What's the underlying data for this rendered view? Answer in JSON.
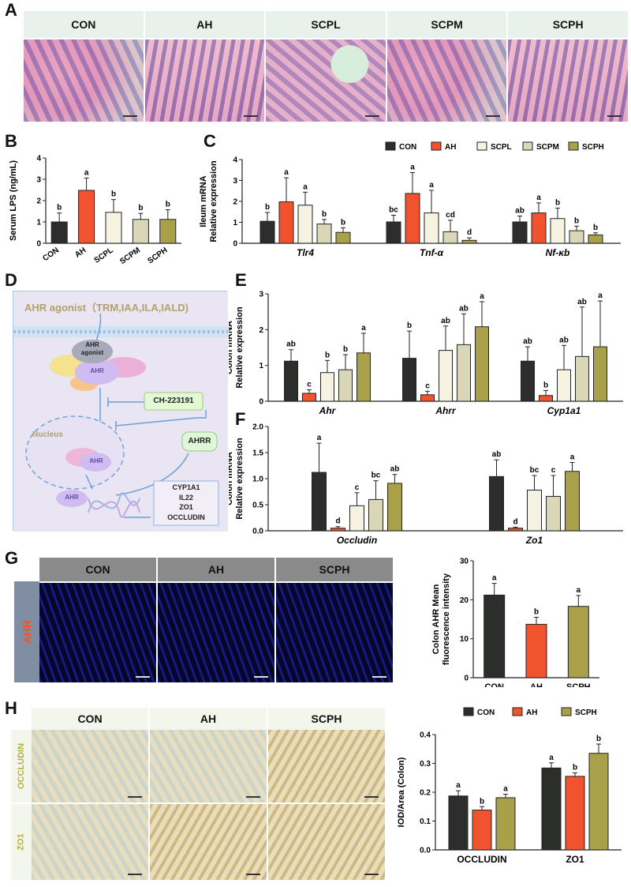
{
  "panels": {
    "A": {
      "label": "A",
      "headers": [
        "CON",
        "AH",
        "SCPL",
        "SCPM",
        "SCPH"
      ]
    },
    "B": {
      "label": "B",
      "chart_data": {
        "type": "bar",
        "categories": [
          "CON",
          "AH",
          "SCPL",
          "SCPM",
          "SCPH"
        ],
        "values": [
          1.0,
          2.48,
          1.45,
          1.12,
          1.12
        ],
        "errors": [
          0.42,
          0.58,
          0.6,
          0.28,
          0.45
        ],
        "letters": [
          "b",
          "a",
          "b",
          "b",
          "b"
        ],
        "ylabel": "Serum LPS (ng/mL)",
        "ylim": [
          0,
          4
        ],
        "yticks": [
          "0",
          "1",
          "2",
          "3",
          "4"
        ],
        "colors": [
          "#2b2e2b",
          "#f0532d",
          "#f6f3e3",
          "#d9d7b8",
          "#a9a04a"
        ]
      }
    },
    "C": {
      "label": "C",
      "chart_data": {
        "type": "bar",
        "groups": [
          "Tlr4",
          "Tnf-α",
          "Nf-κb"
        ],
        "series": [
          {
            "name": "CON",
            "values": [
              1.05,
              1.02,
              1.02
            ],
            "errors": [
              0.42,
              0.32,
              0.28
            ],
            "letters": [
              "b",
              "bc",
              "ab"
            ],
            "color": "#2b2e2b"
          },
          {
            "name": "AH",
            "values": [
              1.98,
              2.38,
              1.45
            ],
            "errors": [
              1.15,
              1.0,
              0.48
            ],
            "letters": [
              "a",
              "a",
              "a"
            ],
            "color": "#f0532d"
          },
          {
            "name": "SCPL",
            "values": [
              1.82,
              1.45,
              1.18
            ],
            "errors": [
              0.62,
              1.08,
              0.5
            ],
            "letters": [
              "a",
              "a",
              "b"
            ],
            "color": "#f6f3e3"
          },
          {
            "name": "SCPM",
            "values": [
              0.92,
              0.55,
              0.6
            ],
            "errors": [
              0.22,
              0.55,
              0.22
            ],
            "letters": [
              "b",
              "cd",
              "b"
            ],
            "color": "#d9d7b8"
          },
          {
            "name": "SCPH",
            "values": [
              0.52,
              0.14,
              0.4
            ],
            "errors": [
              0.22,
              0.12,
              0.1
            ],
            "letters": [
              "b",
              "d",
              "b"
            ],
            "color": "#a9a04a"
          }
        ],
        "ylabel_line1": "Ileum mRNA",
        "ylabel_line2": "Relative expression",
        "ylim": [
          0,
          4
        ],
        "yticks": [
          "0",
          "1",
          "2",
          "3",
          "4"
        ]
      }
    },
    "D": {
      "label": "D",
      "agonist_title": "AHR agonist（TRM,IAA,ILA,IALD)",
      "agonist_node_line1": "AHR",
      "agonist_node_line2": "agonist",
      "ahr_cyto": "AHR",
      "inhibitor": "CH-223191",
      "nucleus_label": "Nucleus",
      "ahr_nucleus": "AHR",
      "ahrr": "AHRR",
      "ahr_dna": "AHR",
      "targets": [
        "CYP1A1",
        "IL22",
        "ZO1",
        "OCCLUDIN"
      ]
    },
    "E": {
      "label": "E",
      "chart_data": {
        "type": "bar",
        "groups": [
          "Ahr",
          "Ahrr",
          "Cyp1a1"
        ],
        "series": [
          {
            "name": "CON",
            "values": [
              1.12,
              1.2,
              1.12
            ],
            "errors": [
              0.32,
              0.76,
              0.4
            ],
            "letters": [
              "ab",
              "b",
              "ab"
            ],
            "color": "#2b2e2b"
          },
          {
            "name": "AH",
            "values": [
              0.22,
              0.18,
              0.16
            ],
            "errors": [
              0.1,
              0.1,
              0.14
            ],
            "letters": [
              "c",
              "c",
              "b"
            ],
            "color": "#f0532d"
          },
          {
            "name": "SCPL",
            "values": [
              0.8,
              1.42,
              0.88
            ],
            "errors": [
              0.34,
              0.68,
              0.68
            ],
            "letters": [
              "b",
              "ab",
              "ab"
            ],
            "color": "#f6f3e3"
          },
          {
            "name": "SCPM",
            "values": [
              0.88,
              1.58,
              1.25
            ],
            "errors": [
              0.42,
              0.86,
              1.38
            ],
            "letters": [
              "b",
              "ab",
              "ab"
            ],
            "color": "#d9d7b8"
          },
          {
            "name": "SCPH",
            "values": [
              1.35,
              2.08,
              1.52
            ],
            "errors": [
              0.55,
              0.7,
              1.28
            ],
            "letters": [
              "a",
              "a",
              "a"
            ],
            "color": "#a9a04a"
          }
        ],
        "ylabel_line1": "Colon mRNA",
        "ylabel_line2": "Relative expression",
        "ylim": [
          0,
          3
        ],
        "yticks": [
          "0",
          "1",
          "2",
          "3"
        ]
      }
    },
    "F": {
      "label": "F",
      "chart_data": {
        "type": "bar",
        "groups": [
          "Occludin",
          "Zo1"
        ],
        "series": [
          {
            "name": "CON",
            "values": [
              1.12,
              1.04
            ],
            "errors": [
              0.56,
              0.32
            ],
            "letters": [
              "a",
              "ab"
            ],
            "color": "#2b2e2b"
          },
          {
            "name": "AH",
            "values": [
              0.05,
              0.05
            ],
            "errors": [
              0.03,
              0.02
            ],
            "letters": [
              "d",
              "d"
            ],
            "color": "#f0532d"
          },
          {
            "name": "SCPL",
            "values": [
              0.48,
              0.78
            ],
            "errors": [
              0.25,
              0.28
            ],
            "letters": [
              "c",
              "bc"
            ],
            "color": "#f6f3e3"
          },
          {
            "name": "SCPM",
            "values": [
              0.6,
              0.66
            ],
            "errors": [
              0.36,
              0.4
            ],
            "letters": [
              "bc",
              "c"
            ],
            "color": "#d9d7b8"
          },
          {
            "name": "SCPH",
            "values": [
              0.91,
              1.14
            ],
            "errors": [
              0.17,
              0.17
            ],
            "letters": [
              "ab",
              "a"
            ],
            "color": "#a9a04a"
          }
        ],
        "ylabel_line1": "Colon mRNA",
        "ylabel_line2": "Relative expression",
        "ylim": [
          0,
          2.0
        ],
        "yticks": [
          "0.0",
          "0.5",
          "1.0",
          "1.5",
          "2.0"
        ]
      }
    },
    "G": {
      "label": "G",
      "headers": [
        "CON",
        "AH",
        "SCPH"
      ],
      "row_label": "AHR",
      "chart_data": {
        "type": "bar",
        "categories": [
          "CON",
          "AH",
          "SCPH"
        ],
        "values": [
          21.2,
          13.7,
          18.3
        ],
        "errors": [
          3.0,
          1.8,
          2.8
        ],
        "letters": [
          "a",
          "b",
          "a"
        ],
        "ylabel_line1": "Colon AHR Mean",
        "ylabel_line2": "fluorescence intensity",
        "ylim": [
          0,
          30
        ],
        "yticks": [
          "0",
          "10",
          "20",
          "30"
        ],
        "colors": [
          "#2b2e2b",
          "#f0532d",
          "#a9a04a"
        ]
      }
    },
    "H": {
      "label": "H",
      "headers": [
        "CON",
        "AH",
        "SCPH"
      ],
      "row_labels": [
        "OCCLUDIN",
        "ZO1"
      ],
      "chart_data": {
        "type": "bar",
        "groups": [
          "OCCLUDIN",
          "ZO1"
        ],
        "series": [
          {
            "name": "CON",
            "values": [
              0.187,
              0.284
            ],
            "errors": [
              0.018,
              0.018
            ],
            "letters": [
              "a",
              "a"
            ],
            "color": "#2b2e2b"
          },
          {
            "name": "AH",
            "values": [
              0.138,
              0.255
            ],
            "errors": [
              0.012,
              0.012
            ],
            "letters": [
              "b",
              "b"
            ],
            "color": "#f0532d"
          },
          {
            "name": "SCPH",
            "values": [
              0.181,
              0.335
            ],
            "errors": [
              0.012,
              0.032
            ],
            "letters": [
              "a",
              "b"
            ],
            "color": "#a9a04a"
          }
        ],
        "ylabel": "IOD/Area (Colon)",
        "ylim": [
          0,
          0.4
        ],
        "yticks": [
          "0.0",
          "0.1",
          "0.2",
          "0.3",
          "0.4"
        ]
      }
    }
  }
}
